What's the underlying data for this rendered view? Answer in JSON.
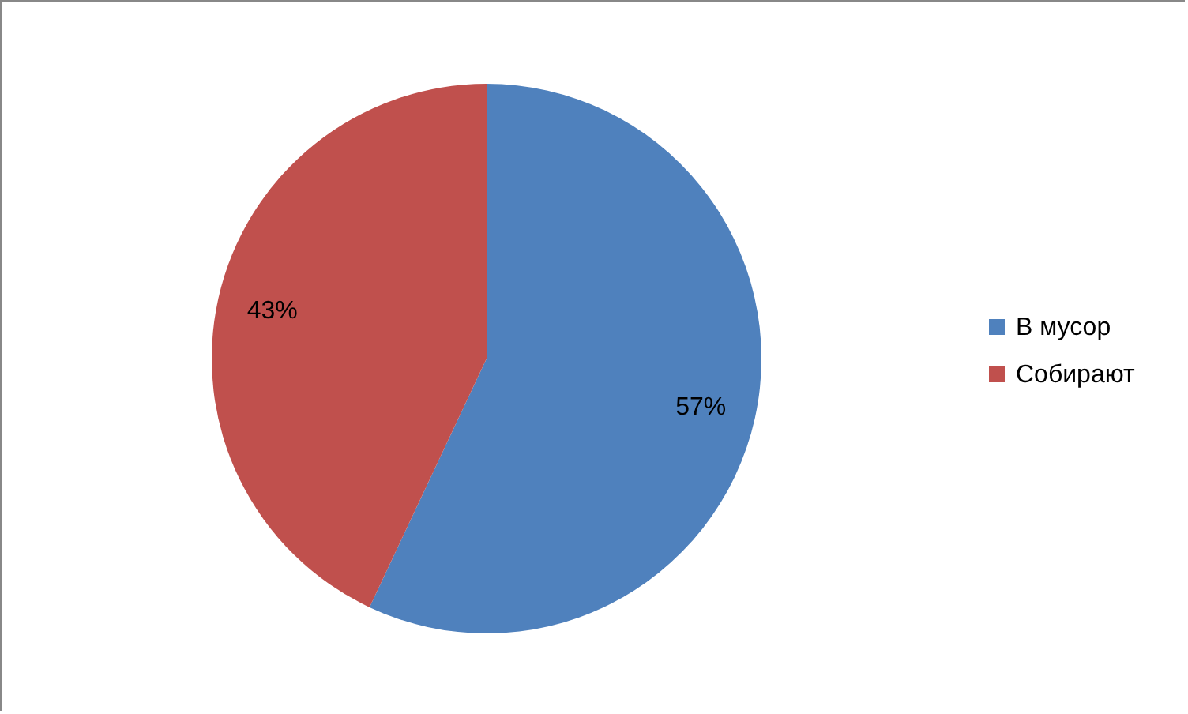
{
  "chart_data": {
    "type": "pie",
    "categories": [
      "В мусор",
      "Собирают"
    ],
    "values": [
      57,
      43
    ],
    "colors": [
      "#4f81bd",
      "#c0504d"
    ],
    "value_labels": [
      "57%",
      "43%"
    ],
    "legend": "right"
  }
}
